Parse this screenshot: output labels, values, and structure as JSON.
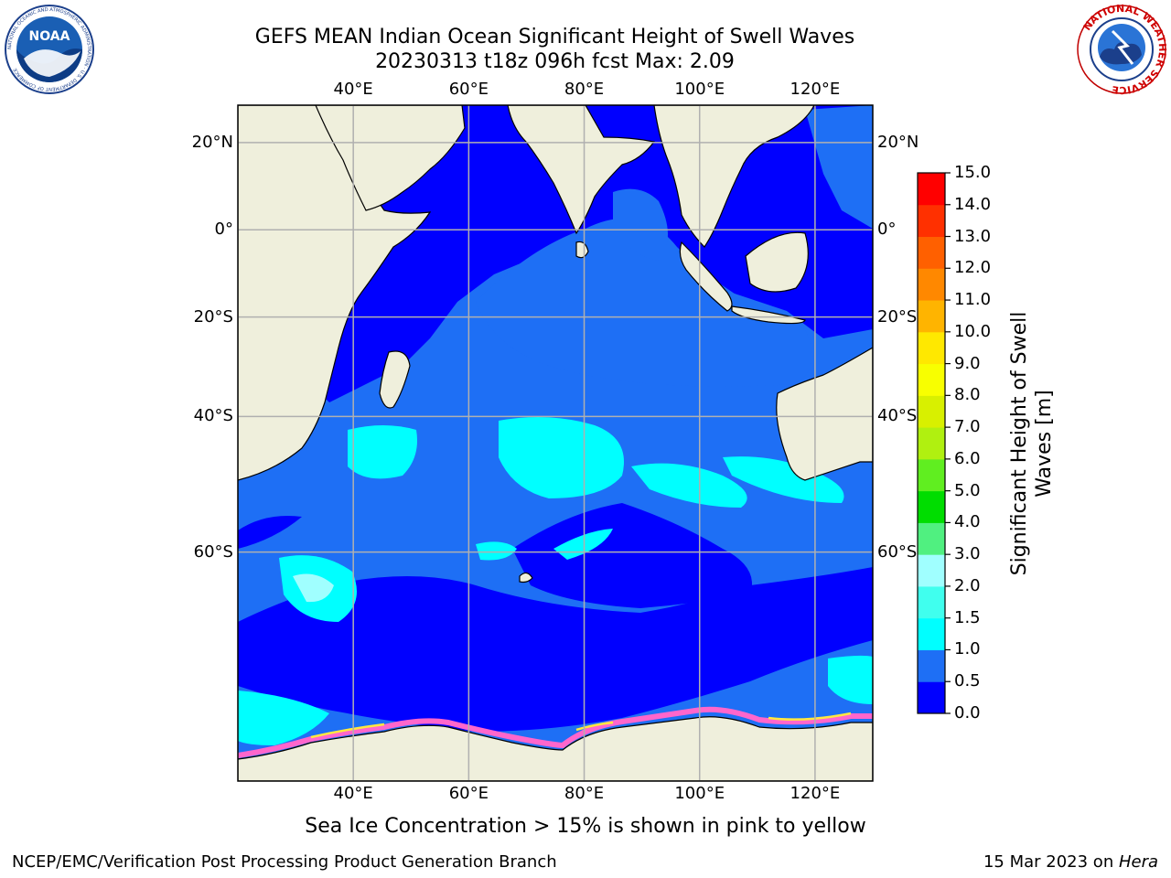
{
  "header": {
    "title_line1": "GEFS MEAN Indian Ocean Significant Height of Swell Waves",
    "title_line2": "20230313 t18z 096h fcst   Max: 2.09"
  },
  "logos": {
    "left": {
      "icon": "noaa-logo",
      "text": "NOAA",
      "ring_text": "NATIONAL OCEANIC AND ATMOSPHERIC ADMINISTRATION · U.S. DEPARTMENT OF COMMERCE"
    },
    "right": {
      "icon": "nws-logo",
      "ring_text": "NATIONAL WEATHER SERVICE"
    }
  },
  "map": {
    "lon_ticks": [
      "40°E",
      "60°E",
      "80°E",
      "100°E",
      "120°E"
    ],
    "lat_ticks": [
      "20°N",
      "0°",
      "20°S",
      "40°S",
      "60°S"
    ],
    "lon_range": [
      20,
      130
    ],
    "lat_range": [
      -78,
      28
    ],
    "colors": {
      "land": "#efefdc",
      "ice_pink": "#ff66cc",
      "ice_yellow": "#ffe840",
      "grid": "#b0b0b0"
    }
  },
  "colorbar": {
    "label_line1": "Significant Height of Swell",
    "label_line2": "Waves [m]",
    "ticks": [
      "0.0",
      "0.5",
      "1.0",
      "1.5",
      "2.0",
      "3.0",
      "4.0",
      "5.0",
      "6.0",
      "7.0",
      "8.0",
      "9.0",
      "10.0",
      "11.0",
      "12.0",
      "13.0",
      "14.0",
      "15.0"
    ],
    "colors": [
      "#0000ff",
      "#1e6ff5",
      "#00ffff",
      "#40ffee",
      "#a0ffff",
      "#50f080",
      "#00dd00",
      "#60ee20",
      "#b0f010",
      "#d8f000",
      "#f8ff00",
      "#ffe800",
      "#ffb400",
      "#ff8800",
      "#ff6000",
      "#ff3000",
      "#ff0000"
    ]
  },
  "caption": "Sea Ice Concentration > 15% is shown in pink to yellow",
  "footer": {
    "left": "NCEP/EMC/Verification Post Processing Product Generation Branch",
    "right_prefix": "15 Mar 2023 on ",
    "right_host": "Hera"
  }
}
